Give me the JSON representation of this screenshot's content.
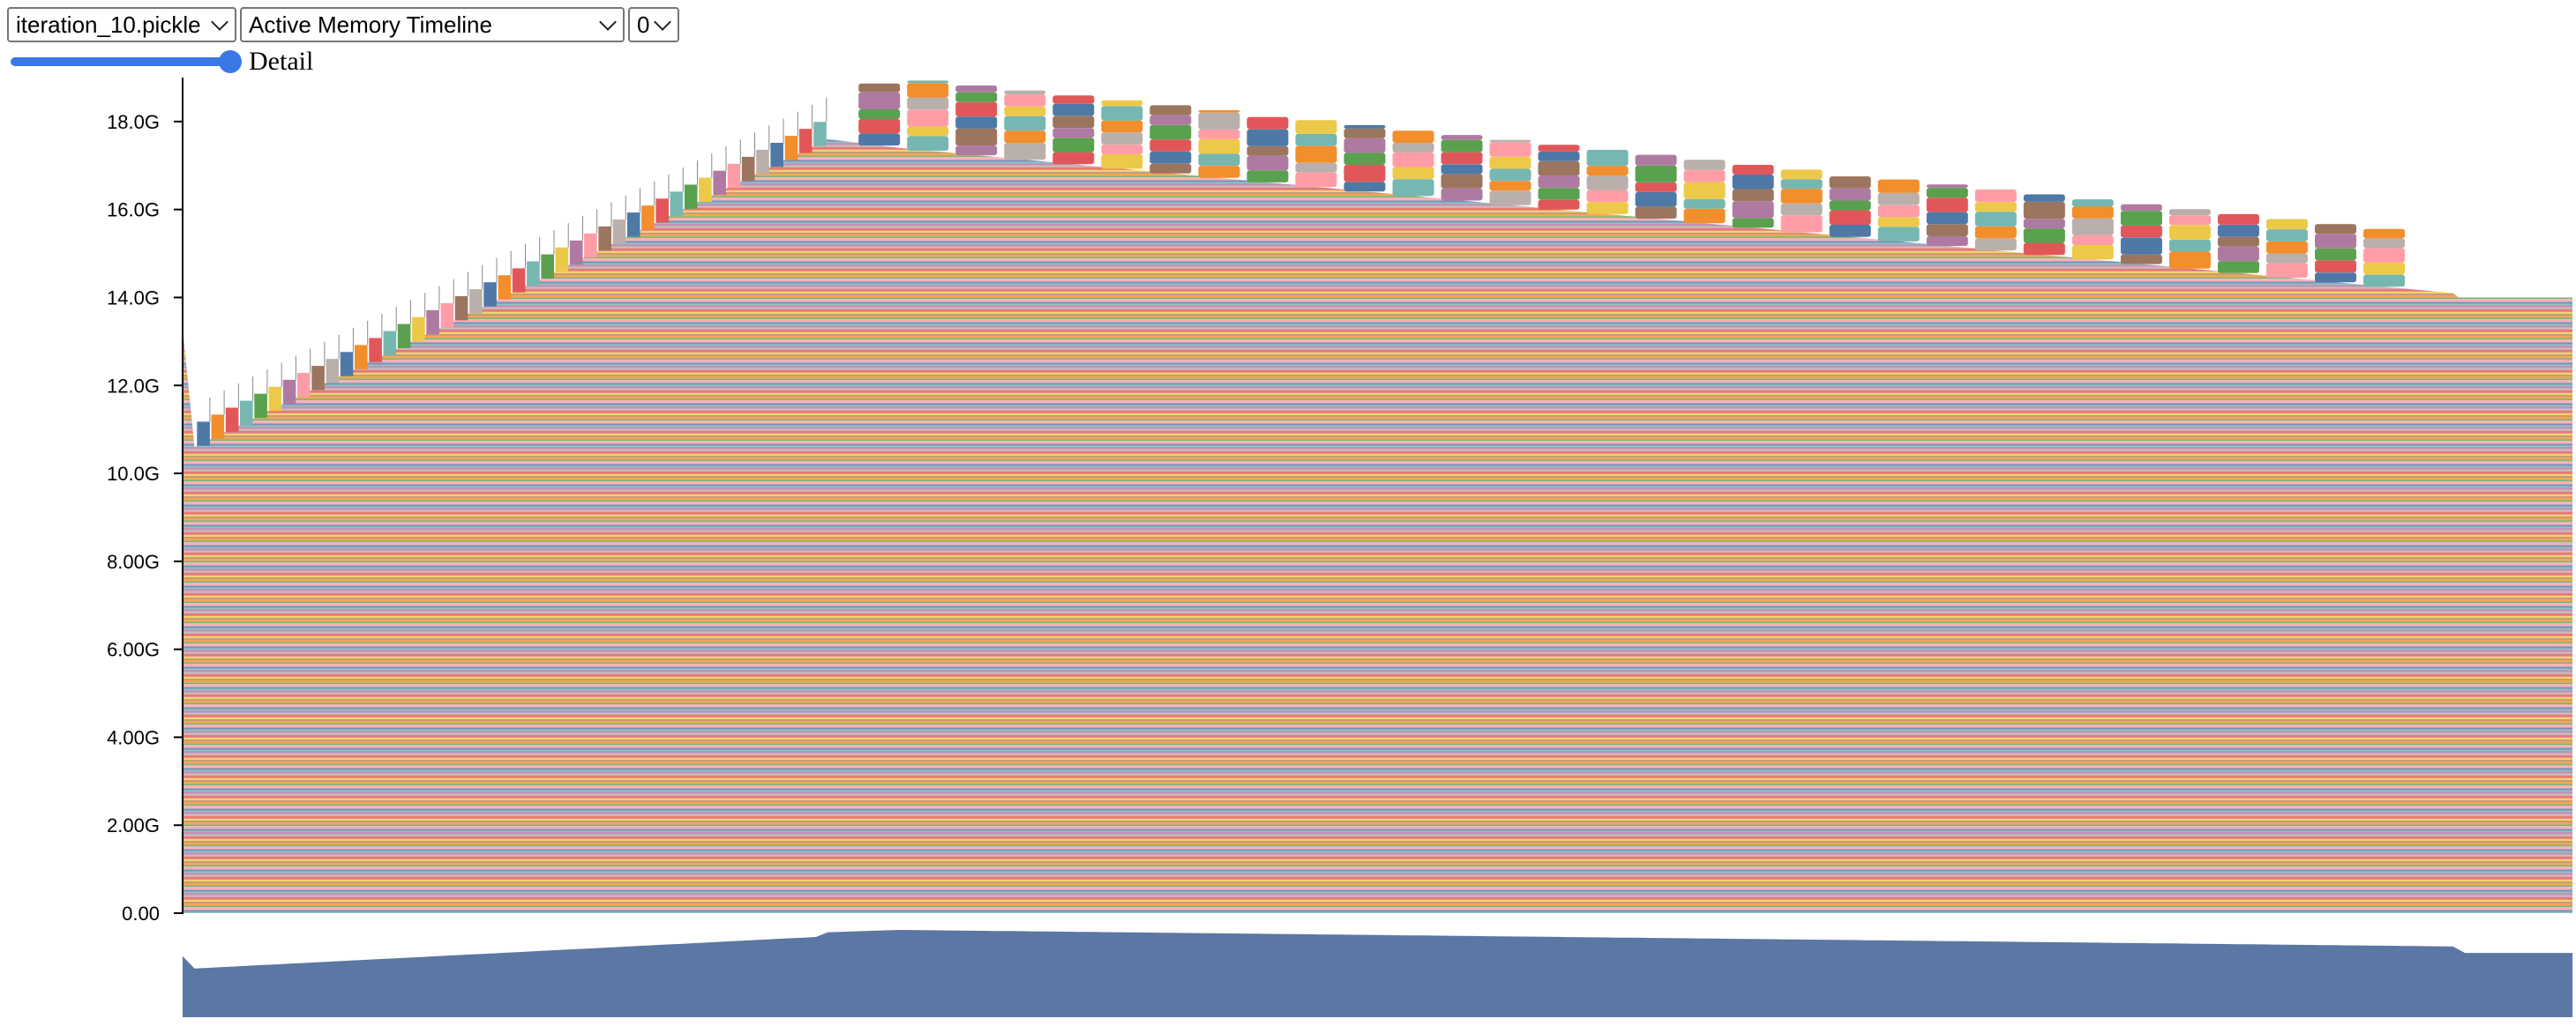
{
  "toolbar": {
    "file_select": "iteration_10.pickle",
    "view_select": "Active Memory Timeline",
    "device_select": "0"
  },
  "detail_slider": {
    "label": "Detail",
    "value_fraction": 1.0
  },
  "chart_data": {
    "type": "area",
    "title": "",
    "xlabel": "",
    "ylabel": "",
    "ylim": [
      0,
      19
    ],
    "y_ticks": [
      {
        "value": 0,
        "label": "0.00"
      },
      {
        "value": 2,
        "label": "2.00G"
      },
      {
        "value": 4,
        "label": "4.00G"
      },
      {
        "value": 6,
        "label": "6.00G"
      },
      {
        "value": 8,
        "label": "8.00G"
      },
      {
        "value": 10,
        "label": "10.0G"
      },
      {
        "value": 12,
        "label": "12.0G"
      },
      {
        "value": 14,
        "label": "14.0G"
      },
      {
        "value": 16,
        "label": "16.0G"
      },
      {
        "value": 18,
        "label": "18.0G"
      }
    ],
    "x_range": [
      0,
      1
    ],
    "total_memory_gb": {
      "x": [
        0,
        0.005,
        0.27,
        0.3,
        0.95,
        0.951,
        1.0
      ],
      "y": [
        13.3,
        10.6,
        17.6,
        17.4,
        14.1,
        14.0,
        14.0
      ]
    },
    "active_block_peak_gb": {
      "x": [
        0.27,
        0.3,
        0.95
      ],
      "y": [
        18.5,
        19.0,
        15.4
      ]
    },
    "block_heights_gb": [
      0.5,
      0.6,
      0.4,
      0.7,
      0.5,
      0.6,
      0.4,
      0.5
    ],
    "grid": false,
    "legend": "none",
    "brush": {
      "overview_fill": "#5b77a3"
    },
    "palette": [
      "#4e79a7",
      "#f28e2c",
      "#e15759",
      "#76b7b2",
      "#59a14f",
      "#edc949",
      "#af7aa1",
      "#ff9da7",
      "#9c755f",
      "#bab0ab"
    ]
  }
}
